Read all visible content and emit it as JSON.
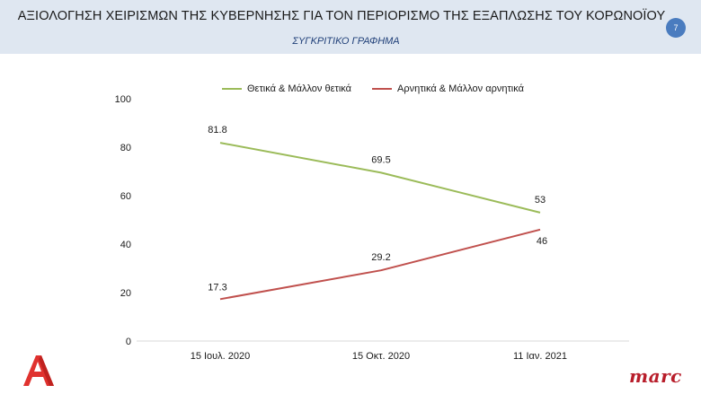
{
  "header": {
    "title": "ΑΞΙΟΛΟΓΗΣΗ ΧΕΙΡΙΣΜΩΝ ΤΗΣ ΚΥΒΕΡΝΗΣΗΣ ΓΙΑ ΤΟΝ ΠΕΡΙΟΡΙΣΜΟ ΤΗΣ ΕΞΑΠΛΩΣΗΣ ΤΟΥ ΚΟΡΩΝΟΪΟΥ",
    "subtitle": "ΣΥΓΚΡΙΤΙΚΟ ΓΡΑΦΗΜΑ",
    "page_number": "7"
  },
  "branding": {
    "logo_icon": "alpha-tv-logo-icon",
    "logo_color": "#e0322f",
    "marc_text": "marc",
    "marc_color": "#b81d2a"
  },
  "chart_data": {
    "type": "line",
    "title": "",
    "xlabel": "",
    "ylabel": "",
    "categories": [
      "15 Ιουλ. 2020",
      "15 Οκτ. 2020",
      "11 Ιαν. 2021"
    ],
    "ylim": [
      0,
      100
    ],
    "yticks": [
      "0",
      "20",
      "40",
      "60",
      "80",
      "100"
    ],
    "grid": false,
    "legend": "top-center",
    "series": [
      {
        "name": "Θετικά & Μάλλον θετικά",
        "values": [
          81.8,
          69.5,
          53
        ],
        "labels": [
          "81.8",
          "69.5",
          "53"
        ],
        "color": "#9bbb59"
      },
      {
        "name": "Αρνητικά & Μάλλον αρνητικά",
        "values": [
          17.3,
          29.2,
          46
        ],
        "labels": [
          "17.3",
          "29.2",
          "46"
        ],
        "color": "#c0504d"
      }
    ]
  }
}
